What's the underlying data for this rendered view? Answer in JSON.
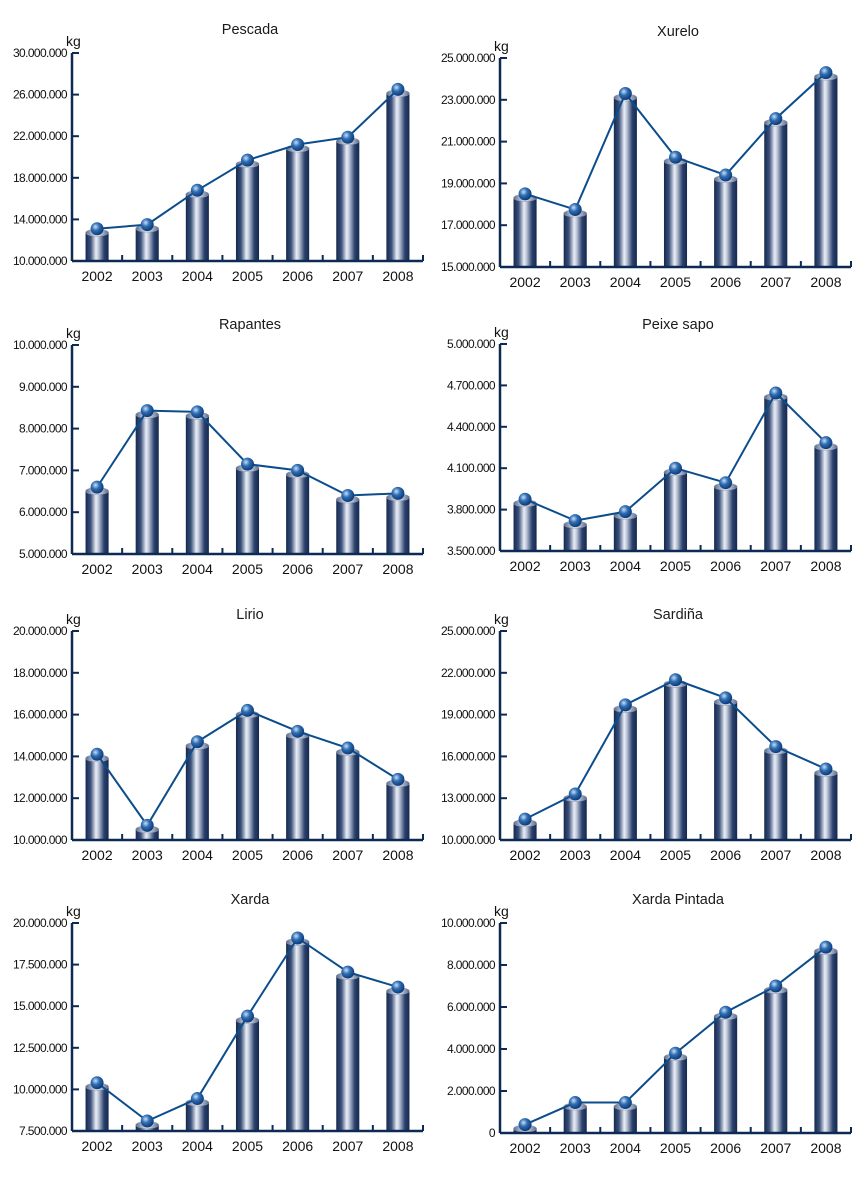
{
  "chart_data": [
    {
      "type": "bar",
      "title": "Pescada",
      "ylabel": "kg",
      "xlabel": "",
      "categories": [
        "2002",
        "2003",
        "2004",
        "2005",
        "2006",
        "2007",
        "2008"
      ],
      "ylim": [
        10000000,
        30000000
      ],
      "yticks": [
        10000000,
        14000000,
        18000000,
        22000000,
        26000000,
        30000000
      ],
      "ytick_labels": [
        "10.000.000",
        "14.000.000",
        "18.000.000",
        "22.000.000",
        "26.000.000",
        "30.000.000"
      ],
      "series": [
        {
          "name": "Pescada",
          "values": [
            13100000,
            13500000,
            16800000,
            19700000,
            21200000,
            21900000,
            26500000
          ]
        }
      ],
      "grid": false,
      "legend": "none",
      "overlay_line": true
    },
    {
      "type": "bar",
      "title": "Xurelo",
      "ylabel": "kg",
      "xlabel": "",
      "categories": [
        "2002",
        "2003",
        "2004",
        "2005",
        "2006",
        "2007",
        "2008"
      ],
      "ylim": [
        15000000,
        25000000
      ],
      "yticks": [
        15000000,
        17000000,
        19000000,
        21000000,
        23000000,
        25000000
      ],
      "ytick_labels": [
        "15.000.000",
        "17.000.000",
        "19.000.000",
        "21.000.000",
        "23.000.000",
        "25.000.000"
      ],
      "series": [
        {
          "name": "Xurelo",
          "values": [
            18500000,
            17750000,
            23300000,
            20250000,
            19400000,
            22100000,
            24300000
          ]
        }
      ],
      "grid": false,
      "legend": "none",
      "overlay_line": true
    },
    {
      "type": "bar",
      "title": "Rapantes",
      "ylabel": "kg",
      "xlabel": "",
      "categories": [
        "2002",
        "2003",
        "2004",
        "2005",
        "2006",
        "2007",
        "2008"
      ],
      "ylim": [
        5000000,
        10000000
      ],
      "yticks": [
        5000000,
        6000000,
        7000000,
        8000000,
        9000000,
        10000000
      ],
      "ytick_labels": [
        "5.000.000",
        "6.000.000",
        "7.000.000",
        "8.000.000",
        "9.000.000",
        "10.000.000"
      ],
      "series": [
        {
          "name": "Rapantes",
          "values": [
            6600000,
            8430000,
            8400000,
            7150000,
            7000000,
            6400000,
            6450000
          ]
        }
      ],
      "grid": false,
      "legend": "none",
      "overlay_line": true
    },
    {
      "type": "bar",
      "title": "Peixe sapo",
      "ylabel": "kg",
      "xlabel": "",
      "categories": [
        "2002",
        "2003",
        "2004",
        "2005",
        "2006",
        "2007",
        "2008"
      ],
      "ylim": [
        3500000,
        5000000
      ],
      "yticks": [
        3500000,
        3800000,
        4100000,
        4400000,
        4700000,
        5000000
      ],
      "ytick_labels": [
        "3.500.000",
        "3.800.000",
        "4.100.000",
        "4.400.000",
        "4.700.000",
        "5.000.000"
      ],
      "series": [
        {
          "name": "Peixe sapo",
          "values": [
            3875000,
            3720000,
            3785000,
            4100000,
            3995000,
            4645000,
            4285000
          ]
        }
      ],
      "grid": false,
      "legend": "none",
      "overlay_line": true
    },
    {
      "type": "bar",
      "title": "Lirio",
      "ylabel": "kg",
      "xlabel": "",
      "categories": [
        "2002",
        "2003",
        "2004",
        "2005",
        "2006",
        "2007",
        "2008"
      ],
      "ylim": [
        10000000,
        20000000
      ],
      "yticks": [
        10000000,
        12000000,
        14000000,
        16000000,
        18000000,
        20000000
      ],
      "ytick_labels": [
        "10.000.000",
        "12.000.000",
        "14.000.000",
        "16.000.000",
        "18.000.000",
        "20.000.000"
      ],
      "series": [
        {
          "name": "Lirio",
          "values": [
            14100000,
            10700000,
            14700000,
            16200000,
            15200000,
            14400000,
            12900000
          ]
        }
      ],
      "grid": false,
      "legend": "none",
      "overlay_line": true
    },
    {
      "type": "bar",
      "title": "Sardiña",
      "ylabel": "kg",
      "xlabel": "",
      "categories": [
        "2002",
        "2003",
        "2004",
        "2005",
        "2006",
        "2007",
        "2008"
      ],
      "ylim": [
        10000000,
        25000000
      ],
      "yticks": [
        10000000,
        13000000,
        16000000,
        19000000,
        22000000,
        25000000
      ],
      "ytick_labels": [
        "10.000.000",
        "13.000.000",
        "16.000.000",
        "19.000.000",
        "22.000.000",
        "25.000.000"
      ],
      "series": [
        {
          "name": "Sardiña",
          "values": [
            11500000,
            13300000,
            19700000,
            21500000,
            20200000,
            16700000,
            15100000
          ]
        }
      ],
      "grid": false,
      "legend": "none",
      "overlay_line": true
    },
    {
      "type": "bar",
      "title": "Xarda",
      "ylabel": "kg",
      "xlabel": "",
      "categories": [
        "2002",
        "2003",
        "2004",
        "2005",
        "2006",
        "2007",
        "2008"
      ],
      "ylim": [
        7500000,
        20000000
      ],
      "yticks": [
        7500000,
        10000000,
        12500000,
        15000000,
        17500000,
        20000000
      ],
      "ytick_labels": [
        "7.500.000",
        "10.000.000",
        "12.500.000",
        "15.000.000",
        "17.500.000",
        "20.000.000"
      ],
      "series": [
        {
          "name": "Xarda",
          "values": [
            10400000,
            8100000,
            9450000,
            14400000,
            19100000,
            17050000,
            16150000
          ]
        }
      ],
      "grid": false,
      "legend": "none",
      "overlay_line": true
    },
    {
      "type": "bar",
      "title": "Xarda Pintada",
      "ylabel": "kg",
      "xlabel": "",
      "categories": [
        "2002",
        "2003",
        "2004",
        "2005",
        "2006",
        "2007",
        "2008"
      ],
      "ylim": [
        0,
        10000000
      ],
      "yticks": [
        0,
        2000000,
        4000000,
        6000000,
        8000000,
        10000000
      ],
      "ytick_labels": [
        "0",
        "2.000.000",
        "4.000.000",
        "6.000.000",
        "8.000.000",
        "10.000.000"
      ],
      "series": [
        {
          "name": "Xarda Pintada",
          "values": [
            400000,
            1450000,
            1450000,
            3800000,
            5750000,
            7000000,
            8850000
          ]
        }
      ],
      "grid": false,
      "legend": "none",
      "overlay_line": true
    }
  ],
  "colors": {
    "axis": "#0d2a55",
    "bar_dark": "#13294f",
    "bar_light": "#e9edf5",
    "line": "#0b4d8c",
    "marker": "#2f6eb3"
  }
}
